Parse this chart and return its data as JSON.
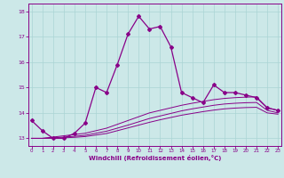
{
  "xlabel": "Windchill (Refroidissement éolien,°C)",
  "background_color": "#cce8e8",
  "line_color": "#880088",
  "hours": [
    0,
    1,
    2,
    3,
    4,
    5,
    6,
    7,
    8,
    9,
    10,
    11,
    12,
    13,
    14,
    15,
    16,
    17,
    18,
    19,
    20,
    21,
    22,
    23
  ],
  "windchill": [
    13.7,
    13.3,
    13.0,
    13.0,
    13.2,
    13.6,
    15.0,
    14.8,
    15.9,
    17.1,
    17.8,
    17.3,
    17.4,
    16.6,
    14.8,
    14.6,
    14.4,
    15.1,
    14.8,
    14.8,
    14.7,
    14.6,
    14.2,
    14.1
  ],
  "curve2": [
    13.0,
    13.0,
    13.05,
    13.1,
    13.15,
    13.2,
    13.3,
    13.4,
    13.55,
    13.7,
    13.85,
    14.0,
    14.1,
    14.2,
    14.3,
    14.38,
    14.45,
    14.52,
    14.57,
    14.6,
    14.62,
    14.63,
    14.2,
    14.1
  ],
  "curve3": [
    13.0,
    13.0,
    13.02,
    13.05,
    13.08,
    13.12,
    13.2,
    13.28,
    13.4,
    13.52,
    13.65,
    13.78,
    13.88,
    13.98,
    14.08,
    14.16,
    14.23,
    14.3,
    14.35,
    14.38,
    14.4,
    14.41,
    14.1,
    14.0
  ],
  "curve4": [
    13.0,
    13.0,
    13.0,
    13.02,
    13.04,
    13.07,
    13.13,
    13.19,
    13.3,
    13.41,
    13.52,
    13.63,
    13.73,
    13.82,
    13.91,
    13.98,
    14.05,
    14.11,
    14.16,
    14.19,
    14.21,
    14.22,
    14.0,
    13.95
  ],
  "ylim": [
    12.7,
    18.3
  ],
  "yticks": [
    13,
    14,
    15,
    16,
    17,
    18
  ],
  "grid_color": "#aad4d4",
  "spine_color": "#880088"
}
